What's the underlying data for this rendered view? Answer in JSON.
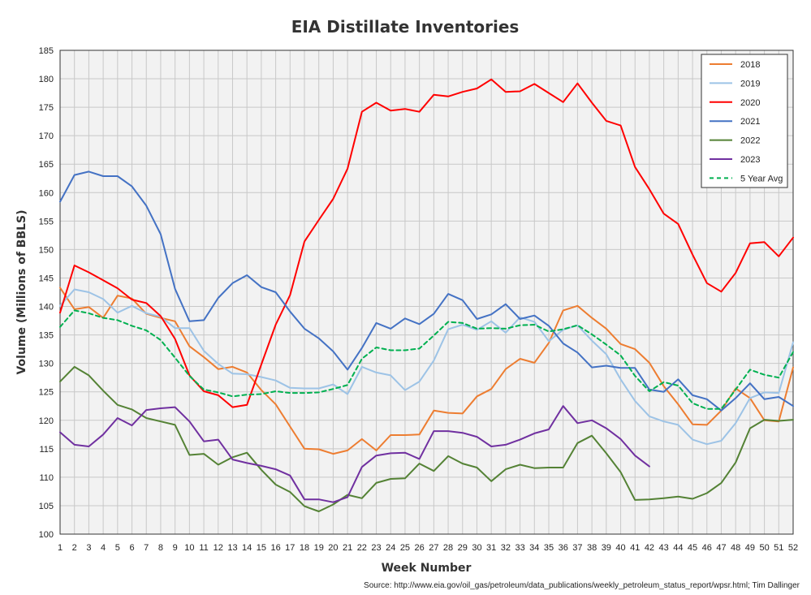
{
  "chart_data": {
    "type": "line",
    "title": "EIA Distillate Inventories",
    "xlabel": "Week Number",
    "ylabel": "Volume (Millions of BBLS)",
    "source": "Source: http://www.eia.gov/oil_gas/petroleum/data_publications/weekly_petroleum_status_report/wpsr.html; Tim Dallinger",
    "xlim": [
      1,
      52
    ],
    "ylim": [
      100,
      185
    ],
    "yticks": [
      100,
      105,
      110,
      115,
      120,
      125,
      130,
      135,
      140,
      145,
      150,
      155,
      160,
      165,
      170,
      175,
      180,
      185
    ],
    "x": [
      1,
      2,
      3,
      4,
      5,
      6,
      7,
      8,
      9,
      10,
      11,
      12,
      13,
      14,
      15,
      16,
      17,
      18,
      19,
      20,
      21,
      22,
      23,
      24,
      25,
      26,
      27,
      28,
      29,
      30,
      31,
      32,
      33,
      34,
      35,
      36,
      37,
      38,
      39,
      40,
      41,
      42,
      43,
      44,
      45,
      46,
      47,
      48,
      49,
      50,
      51,
      52
    ],
    "grid": true,
    "legend_position": "top-right",
    "series": [
      {
        "name": "2018",
        "color": "#ed7d31",
        "dashed": false,
        "values": [
          143.3,
          139.5,
          139.9,
          138.0,
          141.9,
          141.4,
          138.7,
          138.0,
          137.4,
          133.0,
          131.1,
          129.0,
          129.4,
          128.4,
          125.3,
          122.8,
          118.9,
          115.0,
          114.9,
          114.1,
          114.7,
          116.7,
          114.7,
          117.4,
          117.4,
          117.5,
          121.7,
          121.3,
          121.2,
          124.2,
          125.5,
          129.0,
          130.8,
          130.1,
          133.6,
          139.3,
          140.1,
          138.0,
          136.1,
          133.4,
          132.5,
          130.1,
          126.0,
          122.8,
          119.3,
          119.2,
          121.7,
          125.6,
          123.9,
          120.0,
          119.8,
          129.3
        ]
      },
      {
        "name": "2019",
        "color": "#9dc3e6",
        "dashed": false,
        "values": [
          140.1,
          143.0,
          142.5,
          141.3,
          138.9,
          140.1,
          138.8,
          138.2,
          136.2,
          136.2,
          132.2,
          129.9,
          128.2,
          128.1,
          127.6,
          127.0,
          125.7,
          125.6,
          125.6,
          126.3,
          124.6,
          129.4,
          128.4,
          127.9,
          125.3,
          126.8,
          130.5,
          136.0,
          136.8,
          135.9,
          137.4,
          135.4,
          138.1,
          137.3,
          133.9,
          135.9,
          136.7,
          134.0,
          131.6,
          127.2,
          123.4,
          120.7,
          119.8,
          119.2,
          116.6,
          115.8,
          116.4,
          119.5,
          123.9,
          124.9,
          124.8,
          133.7
        ]
      },
      {
        "name": "2020",
        "color": "#ff0000",
        "dashed": false,
        "values": [
          138.9,
          147.2,
          146.0,
          144.6,
          143.2,
          141.2,
          140.6,
          138.3,
          134.3,
          127.9,
          125.1,
          124.4,
          122.3,
          122.7,
          129.8,
          136.8,
          142.0,
          151.4,
          155.2,
          158.9,
          164.2,
          174.2,
          175.8,
          174.4,
          174.7,
          174.2,
          177.2,
          176.9,
          177.7,
          178.3,
          179.9,
          177.7,
          177.8,
          179.1,
          177.5,
          175.9,
          179.2,
          175.8,
          172.6,
          171.8,
          164.5,
          160.6,
          156.3,
          154.5,
          149.1,
          144.1,
          142.6,
          145.9,
          151.1,
          151.3,
          148.8,
          152.1
        ]
      },
      {
        "name": "2021",
        "color": "#4472c4",
        "dashed": false,
        "values": [
          158.4,
          163.1,
          163.7,
          162.9,
          162.9,
          161.1,
          157.7,
          152.7,
          143.1,
          137.4,
          137.6,
          141.5,
          144.1,
          145.5,
          143.4,
          142.5,
          139.1,
          136.1,
          134.4,
          132.1,
          128.9,
          132.7,
          137.1,
          136.1,
          137.9,
          136.9,
          138.7,
          142.2,
          141.1,
          137.8,
          138.6,
          140.4,
          137.8,
          138.4,
          136.6,
          133.5,
          131.9,
          129.3,
          129.6,
          129.2,
          129.2,
          125.4,
          125.0,
          127.2,
          124.4,
          123.7,
          121.7,
          123.9,
          126.5,
          123.7,
          124.1,
          122.5
        ]
      },
      {
        "name": "2022",
        "color": "#548235",
        "dashed": false,
        "values": [
          126.8,
          129.4,
          127.9,
          125.2,
          122.7,
          121.9,
          120.4,
          119.8,
          119.2,
          113.9,
          114.1,
          112.2,
          113.5,
          114.3,
          111.3,
          108.7,
          107.4,
          104.9,
          104.0,
          105.2,
          106.9,
          106.3,
          109.0,
          109.7,
          109.8,
          112.4,
          111.1,
          113.7,
          112.4,
          111.7,
          109.3,
          111.4,
          112.2,
          111.6,
          111.7,
          111.7,
          116.0,
          117.3,
          114.2,
          110.9,
          106.0,
          106.1,
          106.3,
          106.6,
          106.2,
          107.2,
          109.0,
          112.6,
          118.6,
          120.1,
          119.9,
          120.1
        ]
      },
      {
        "name": "2023",
        "color": "#7030a0",
        "dashed": false,
        "values": [
          117.9,
          115.7,
          115.4,
          117.5,
          120.4,
          119.1,
          121.8,
          122.1,
          122.3,
          119.8,
          116.3,
          116.6,
          113.1,
          112.5,
          112.0,
          111.4,
          110.3,
          106.1,
          106.1,
          105.6,
          106.5,
          111.8,
          113.8,
          114.2,
          114.3,
          113.2,
          118.1,
          118.1,
          117.8,
          117.1,
          115.4,
          115.7,
          116.6,
          117.7,
          118.4,
          122.5,
          119.5,
          120.0,
          118.6,
          116.7,
          113.8,
          111.9,
          null,
          null,
          null,
          null,
          null,
          null,
          null,
          null,
          null,
          null
        ]
      },
      {
        "name": "5 Year Avg",
        "color": "#00b050",
        "dashed": true,
        "values": [
          136.4,
          139.3,
          138.8,
          138.0,
          137.6,
          136.6,
          135.8,
          134.1,
          131.0,
          127.8,
          125.4,
          124.9,
          124.2,
          124.5,
          124.6,
          125.1,
          124.8,
          124.8,
          124.9,
          125.5,
          126.2,
          130.8,
          132.8,
          132.3,
          132.3,
          132.6,
          134.9,
          137.3,
          137.1,
          136.1,
          136.2,
          136.1,
          136.7,
          136.8,
          135.6,
          136.0,
          136.7,
          135.1,
          133.3,
          131.4,
          127.8,
          125.1,
          126.7,
          126.1,
          123.0,
          122.0,
          122.0,
          125.4,
          128.9,
          128.0,
          127.5,
          132.0
        ]
      }
    ]
  }
}
